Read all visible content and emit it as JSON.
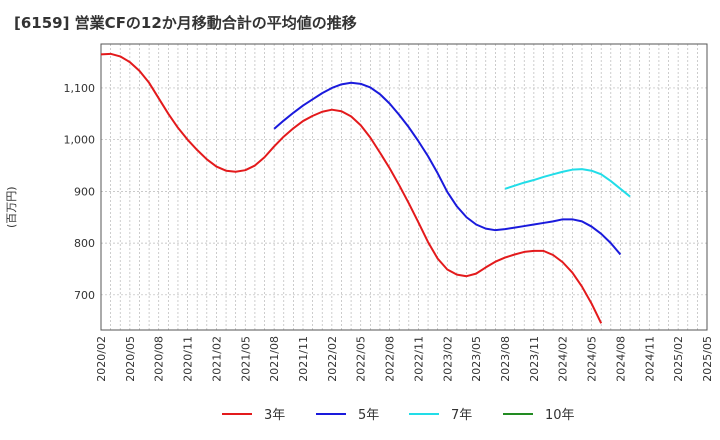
{
  "title": "[6159]  営業CFの12か月移動合計の平均値の推移",
  "chart_data": {
    "type": "line",
    "title": "[6159]  営業CFの12か月移動合計の平均値の推移",
    "ylabel": "(百万円)",
    "xlabel": "",
    "ylim": [
      632,
      1185
    ],
    "y_ticks": [
      700,
      800,
      900,
      1000,
      1100
    ],
    "y_tick_labels": [
      "700",
      "800",
      "900",
      "1,000",
      "1,100"
    ],
    "x_tick_labels": [
      "2020/02",
      "2020/05",
      "2020/08",
      "2020/11",
      "2021/02",
      "2021/05",
      "2021/08",
      "2021/11",
      "2022/02",
      "2022/05",
      "2022/08",
      "2022/11",
      "2023/02",
      "2023/05",
      "2023/08",
      "2023/11",
      "2024/02",
      "2024/05",
      "2024/08",
      "2024/11",
      "2025/02",
      "2025/05"
    ],
    "x_start": "2020/02",
    "grid": true,
    "legend_position": "bottom",
    "series": [
      {
        "name": "3年",
        "color": "#e31a1c",
        "start": "2020/02",
        "values": [
          1165,
          1166,
          1161,
          1150,
          1133,
          1110,
          1080,
          1050,
          1023,
          1000,
          980,
          962,
          948,
          940,
          938,
          941,
          950,
          966,
          987,
          1006,
          1022,
          1036,
          1046,
          1054,
          1058,
          1055,
          1045,
          1028,
          1004,
          975,
          945,
          912,
          877,
          840,
          802,
          770,
          749,
          739,
          736,
          741,
          753,
          764,
          772,
          778,
          783,
          785,
          785,
          777,
          763,
          743,
          716,
          683,
          645
        ]
      },
      {
        "name": "5年",
        "color": "#1a1adc",
        "start": "2021/08",
        "values": [
          1021,
          1037,
          1052,
          1066,
          1078,
          1090,
          1100,
          1107,
          1110,
          1108,
          1101,
          1088,
          1070,
          1048,
          1024,
          997,
          968,
          935,
          899,
          871,
          850,
          836,
          828,
          825,
          827,
          830,
          833,
          836,
          839,
          842,
          846,
          846,
          842,
          832,
          818,
          800,
          778
        ]
      },
      {
        "name": "7年",
        "color": "#22dde8",
        "start": "2023/08",
        "values": [
          905,
          911,
          917,
          922,
          928,
          933,
          938,
          942,
          943,
          940,
          933,
          920,
          905,
          890
        ]
      },
      {
        "name": "10年",
        "color": "#228b22",
        "start": "2024/08",
        "values": []
      }
    ]
  }
}
